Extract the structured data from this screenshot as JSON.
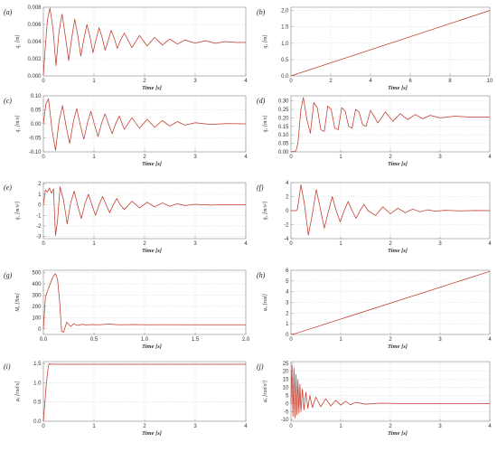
{
  "figure": {
    "series_color": "#c0392b"
  },
  "chart_data": [
    {
      "panel": "(a)",
      "type": "line",
      "ylabel": "q₁ [m]",
      "xlabel": "Time [s]",
      "xlim": [
        0,
        4
      ],
      "ylim": [
        0,
        0.008
      ],
      "xticks": [
        0,
        1,
        2,
        3,
        4
      ],
      "xtick_labels": [
        "0",
        "1",
        "2",
        "3",
        "4"
      ],
      "yticks": [
        0,
        0.002,
        0.004,
        0.006,
        0.008
      ],
      "ytick_labels": [
        "0.000",
        "0.002",
        "0.004",
        "0.006",
        "0.008"
      ],
      "grid": true,
      "series": [
        {
          "x": [
            0,
            0.04,
            0.08,
            0.13,
            0.19,
            0.25,
            0.31,
            0.37,
            0.43,
            0.5,
            0.56,
            0.62,
            0.68,
            0.74,
            0.8,
            0.86,
            0.92,
            0.98,
            1.04,
            1.1,
            1.16,
            1.22,
            1.28,
            1.34,
            1.4,
            1.46,
            1.52,
            1.6,
            1.75,
            1.9,
            2.05,
            2.2,
            2.35,
            2.5,
            2.65,
            2.8,
            3.0,
            3.2,
            3.4,
            3.6,
            3.8,
            4.0
          ],
          "y": [
            0.0001,
            0.0035,
            0.0065,
            0.0079,
            0.0055,
            0.0012,
            0.0052,
            0.0072,
            0.0048,
            0.0018,
            0.0044,
            0.0066,
            0.0047,
            0.0023,
            0.0043,
            0.006,
            0.0046,
            0.0027,
            0.0042,
            0.0056,
            0.0045,
            0.003,
            0.0041,
            0.0053,
            0.0044,
            0.0032,
            0.0041,
            0.005,
            0.0033,
            0.0047,
            0.0035,
            0.0045,
            0.0036,
            0.0043,
            0.0037,
            0.0042,
            0.0038,
            0.0041,
            0.0038,
            0.004,
            0.0039,
            0.0039
          ]
        }
      ]
    },
    {
      "panel": "(b)",
      "type": "line",
      "ylabel": "q₂ [m]",
      "xlabel": "Time [s]",
      "xlim": [
        0,
        10
      ],
      "ylim": [
        0,
        2.1
      ],
      "xticks": [
        0,
        2,
        4,
        6,
        8,
        10
      ],
      "xtick_labels": [
        "0",
        "2",
        "4",
        "6",
        "8",
        "10"
      ],
      "yticks": [
        0,
        0.5,
        1.0,
        1.5,
        2.0
      ],
      "ytick_labels": [
        "0.0",
        "0.5",
        "1.0",
        "1.5",
        "2.0"
      ],
      "grid": true,
      "series": [
        {
          "x": [
            0,
            0.1,
            10
          ],
          "y": [
            0,
            0.02,
            2.0
          ]
        }
      ]
    },
    {
      "panel": "(c)",
      "type": "line",
      "ylabel": "q̇₁ [m/s]",
      "xlabel": "Time [s]",
      "xlim": [
        0,
        4
      ],
      "ylim": [
        -0.1,
        0.1
      ],
      "xticks": [
        0,
        1,
        2,
        3,
        4
      ],
      "xtick_labels": [
        "0",
        "1",
        "2",
        "3",
        "4"
      ],
      "yticks": [
        -0.1,
        -0.05,
        0,
        0.05,
        0.1
      ],
      "ytick_labels": [
        "-0.10",
        "-0.05",
        "0.00",
        "0.05",
        "0.10"
      ],
      "grid": true,
      "series": [
        {
          "x": [
            0,
            0.05,
            0.1,
            0.17,
            0.24,
            0.31,
            0.38,
            0.45,
            0.52,
            0.59,
            0.66,
            0.73,
            0.8,
            0.87,
            0.94,
            1.01,
            1.08,
            1.15,
            1.22,
            1.29,
            1.36,
            1.43,
            1.5,
            1.6,
            1.75,
            1.9,
            2.05,
            2.2,
            2.35,
            2.5,
            2.65,
            2.8,
            3.0,
            3.3,
            3.6,
            4.0
          ],
          "y": [
            0,
            0.07,
            0.09,
            -0.02,
            -0.095,
            0.01,
            0.065,
            -0.01,
            -0.07,
            0.005,
            0.055,
            -0.005,
            -0.055,
            0.003,
            0.045,
            -0.003,
            -0.045,
            0.002,
            0.036,
            -0.002,
            -0.035,
            0.001,
            0.028,
            -0.02,
            0.022,
            -0.016,
            0.016,
            -0.012,
            0.012,
            -0.008,
            0.008,
            -0.005,
            0.004,
            -0.002,
            0.001,
            0
          ]
        }
      ]
    },
    {
      "panel": "(d)",
      "type": "line",
      "ylabel": "q̇₂ [m/s]",
      "xlabel": "Time [s]",
      "xlim": [
        0,
        4
      ],
      "ylim": [
        0,
        0.33
      ],
      "xticks": [
        0,
        1,
        2,
        3,
        4
      ],
      "xtick_labels": [
        "0",
        "1",
        "2",
        "3",
        "4"
      ],
      "yticks": [
        0,
        0.05,
        0.1,
        0.15,
        0.2,
        0.25,
        0.3
      ],
      "ytick_labels": [
        "0.00",
        "0.05",
        "0.10",
        "0.15",
        "0.20",
        "0.25",
        "0.30"
      ],
      "grid": true,
      "series": [
        {
          "x": [
            0,
            0.1,
            0.14,
            0.2,
            0.25,
            0.32,
            0.39,
            0.46,
            0.53,
            0.6,
            0.67,
            0.74,
            0.81,
            0.88,
            0.95,
            1.02,
            1.09,
            1.16,
            1.23,
            1.3,
            1.37,
            1.44,
            1.51,
            1.6,
            1.75,
            1.9,
            2.05,
            2.2,
            2.35,
            2.5,
            2.65,
            2.8,
            3.0,
            3.3,
            3.6,
            4.0
          ],
          "y": [
            0,
            0.005,
            0.05,
            0.25,
            0.32,
            0.19,
            0.11,
            0.29,
            0.26,
            0.13,
            0.12,
            0.27,
            0.25,
            0.14,
            0.13,
            0.26,
            0.24,
            0.15,
            0.14,
            0.25,
            0.235,
            0.16,
            0.15,
            0.245,
            0.17,
            0.235,
            0.18,
            0.225,
            0.19,
            0.22,
            0.195,
            0.215,
            0.2,
            0.21,
            0.205,
            0.205
          ]
        }
      ]
    },
    {
      "panel": "(e)",
      "type": "line",
      "ylabel": "q̈₁ [m/s²]",
      "xlabel": "Time [s]",
      "xlim": [
        0,
        4
      ],
      "ylim": [
        -3.2,
        2.1
      ],
      "xticks": [
        0,
        1,
        2,
        3,
        4
      ],
      "xtick_labels": [
        "0",
        "1",
        "2",
        "3",
        "4"
      ],
      "yticks": [
        -3,
        -2,
        -1,
        0,
        1,
        2
      ],
      "ytick_labels": [
        "-3",
        "-2",
        "-1",
        "0",
        "1",
        "2"
      ],
      "grid": true,
      "series": [
        {
          "x": [
            0,
            0.04,
            0.08,
            0.12,
            0.16,
            0.2,
            0.24,
            0.28,
            0.33,
            0.4,
            0.47,
            0.54,
            0.61,
            0.68,
            0.75,
            0.82,
            0.89,
            0.96,
            1.03,
            1.1,
            1.17,
            1.24,
            1.31,
            1.38,
            1.45,
            1.52,
            1.6,
            1.75,
            1.9,
            2.05,
            2.2,
            2.35,
            2.5,
            2.65,
            2.8,
            3.0,
            3.3,
            3.6,
            4.0
          ],
          "y": [
            0,
            1.4,
            1.2,
            1.6,
            1.1,
            1.5,
            -2.9,
            -1.5,
            1.7,
            0.4,
            -1.8,
            0.2,
            1.3,
            -0.1,
            -1.3,
            0.1,
            1.0,
            0,
            -1.0,
            0,
            0.8,
            0,
            -0.75,
            0,
            0.6,
            0,
            -0.45,
            0.35,
            -0.3,
            0.25,
            -0.2,
            0.18,
            -0.14,
            0.1,
            -0.07,
            0.05,
            -0.03,
            0.02,
            0
          ]
        }
      ]
    },
    {
      "panel": "(f)",
      "type": "line",
      "ylabel": "q̈₂ [m/s²]",
      "xlabel": "Time [s]",
      "xlim": [
        0,
        4
      ],
      "ylim": [
        -4,
        4
      ],
      "xticks": [
        0,
        1,
        2,
        3,
        4
      ],
      "xtick_labels": [
        "0",
        "1",
        "2",
        "3",
        "4"
      ],
      "yticks": [
        -4,
        -2,
        0,
        2,
        4
      ],
      "ytick_labels": [
        "-4",
        "-2",
        "0",
        "2",
        "4"
      ],
      "grid": true,
      "series": [
        {
          "x": [
            0,
            0.1,
            0.13,
            0.2,
            0.27,
            0.35,
            0.43,
            0.51,
            0.59,
            0.67,
            0.75,
            0.83,
            0.91,
            0.99,
            1.07,
            1.15,
            1.23,
            1.31,
            1.39,
            1.47,
            1.55,
            1.7,
            1.85,
            2.0,
            2.15,
            2.3,
            2.45,
            2.6,
            2.75,
            2.9,
            3.1,
            3.4,
            3.7,
            4.0
          ],
          "y": [
            0,
            0,
            0.2,
            3.7,
            1.0,
            -3.5,
            -0.5,
            3.0,
            0.3,
            -2.5,
            -0.2,
            2.0,
            0,
            -1.6,
            0,
            1.3,
            0,
            -1.1,
            0,
            0.9,
            0,
            -0.7,
            0.55,
            -0.45,
            0.35,
            -0.3,
            0.22,
            -0.17,
            0.12,
            -0.08,
            0.05,
            -0.03,
            0.01,
            0
          ]
        }
      ]
    },
    {
      "panel": "(g)",
      "type": "line",
      "ylabel": "Mₐ [Nm]",
      "xlabel": "Time [s]",
      "xlim": [
        0,
        2.0
      ],
      "ylim": [
        -50,
        520
      ],
      "xticks": [
        0,
        0.5,
        1.0,
        1.5,
        2.0
      ],
      "xtick_labels": [
        "0.0",
        "0.5",
        "1.0",
        "1.5",
        "2.0"
      ],
      "yticks": [
        0,
        100,
        200,
        300,
        400,
        500
      ],
      "ytick_labels": [
        "0",
        "100",
        "200",
        "300",
        "400",
        "500"
      ],
      "grid": true,
      "series": [
        {
          "x": [
            0,
            0.02,
            0.05,
            0.08,
            0.1,
            0.12,
            0.14,
            0.16,
            0.18,
            0.2,
            0.23,
            0.27,
            0.3,
            0.34,
            0.38,
            0.42,
            0.48,
            0.55,
            0.65,
            0.75,
            0.9,
            1.05,
            1.2,
            1.4,
            1.6,
            1.8,
            2.0
          ],
          "y": [
            0,
            280,
            360,
            430,
            470,
            490,
            440,
            250,
            -20,
            -30,
            60,
            20,
            45,
            30,
            40,
            35,
            38,
            36,
            42,
            36,
            38,
            36,
            37,
            36,
            36,
            36,
            36
          ]
        }
      ]
    },
    {
      "panel": "(h)",
      "type": "line",
      "ylabel": "φₐ [rad]",
      "xlabel": "Time [s]",
      "xlim": [
        0,
        4
      ],
      "ylim": [
        0,
        6
      ],
      "xticks": [
        0,
        1,
        2,
        3,
        4
      ],
      "xtick_labels": [
        "0",
        "1",
        "2",
        "3",
        "4"
      ],
      "yticks": [
        0,
        1,
        2,
        3,
        4,
        5,
        6
      ],
      "ytick_labels": [
        "0",
        "1",
        "2",
        "3",
        "4",
        "5",
        "6"
      ],
      "grid": true,
      "series": [
        {
          "x": [
            0,
            0.1,
            4
          ],
          "y": [
            0,
            0.1,
            5.9
          ]
        }
      ]
    },
    {
      "panel": "(i)",
      "type": "line",
      "ylabel": "φ̇ₐ [rad/s]",
      "xlabel": "Time [s]",
      "xlim": [
        0,
        4
      ],
      "ylim": [
        0,
        1.55
      ],
      "xticks": [
        0,
        1,
        2,
        3,
        4
      ],
      "xtick_labels": [
        "0",
        "1",
        "2",
        "3",
        "4"
      ],
      "yticks": [
        0,
        0.5,
        1.0,
        1.5
      ],
      "ytick_labels": [
        "0.0",
        "0.5",
        "1.0",
        "1.5"
      ],
      "grid": true,
      "series": [
        {
          "x": [
            0,
            0.06,
            0.1,
            0.12,
            0.14,
            0.17,
            0.2,
            0.25,
            4
          ],
          "y": [
            0,
            1.0,
            1.45,
            1.5,
            1.47,
            1.49,
            1.48,
            1.48,
            1.48
          ]
        }
      ]
    },
    {
      "panel": "(j)",
      "type": "line",
      "ylabel": "φ̈ₐ [rad/s²]",
      "xlabel": "Time [s]",
      "xlim": [
        0,
        4
      ],
      "ylim": [
        -11,
        26
      ],
      "xticks": [
        0,
        1,
        2,
        3,
        4
      ],
      "xtick_labels": [
        "0",
        "1",
        "2",
        "3",
        "4"
      ],
      "yticks": [
        -10,
        -5,
        0,
        5,
        10,
        15,
        20,
        25
      ],
      "ytick_labels": [
        "-10",
        "-5",
        "0",
        "5",
        "10",
        "15",
        "20",
        "25"
      ],
      "grid": true,
      "series": [
        {
          "x": [
            0,
            0.02,
            0.04,
            0.06,
            0.08,
            0.1,
            0.12,
            0.14,
            0.16,
            0.18,
            0.2,
            0.23,
            0.26,
            0.3,
            0.34,
            0.38,
            0.43,
            0.5,
            0.6,
            0.7,
            0.8,
            0.9,
            1.0,
            1.1,
            1.2,
            1.3,
            1.5,
            1.8,
            2.2,
            4.0
          ],
          "y": [
            0,
            24,
            -8,
            22,
            -9,
            18,
            -7,
            15,
            -6,
            12,
            -5,
            9,
            -4,
            7,
            -3,
            5,
            -2.5,
            4,
            -2,
            3,
            -1.5,
            2,
            -1,
            1.4,
            -0.8,
            0.8,
            -0.4,
            0.2,
            0,
            0
          ]
        }
      ]
    }
  ]
}
